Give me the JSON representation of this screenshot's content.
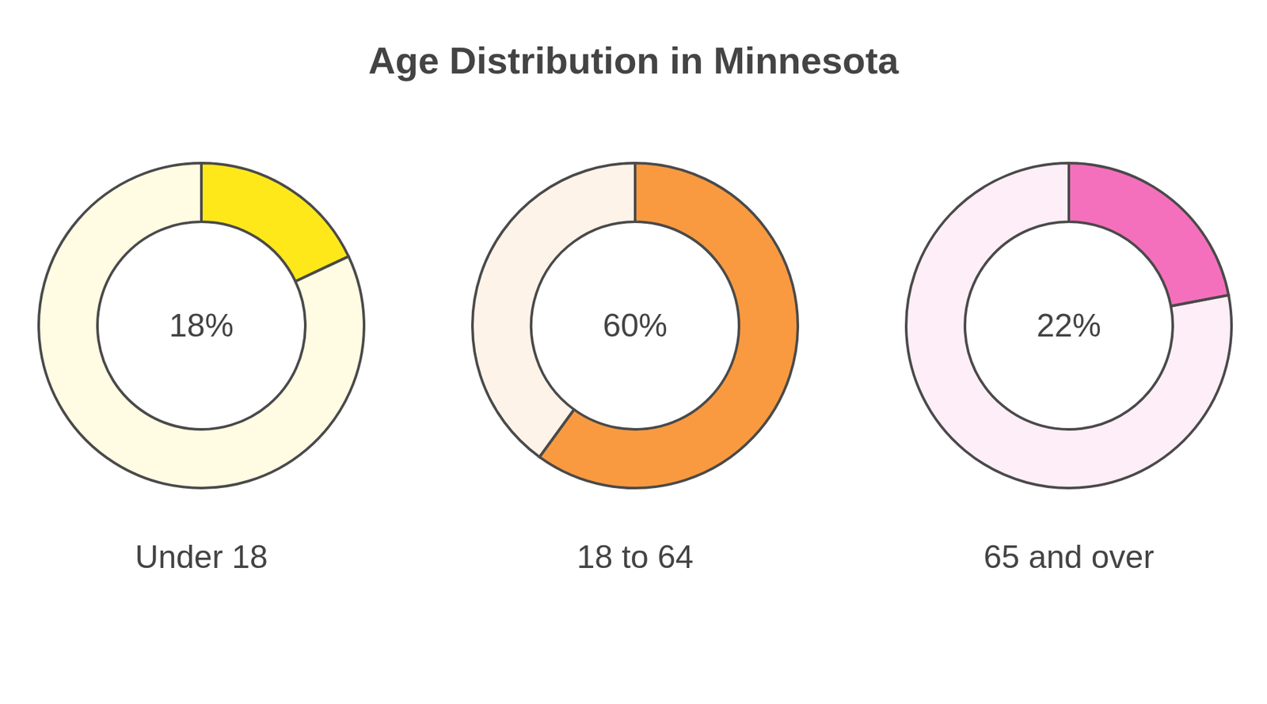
{
  "chart_data": {
    "type": "pie",
    "title": "Age Distribution in Minnesota",
    "categories": [
      "Under 18",
      "18 to 64",
      "65 and over"
    ],
    "values": [
      18,
      60,
      22
    ],
    "value_labels": [
      "18%",
      "60%",
      "22%"
    ],
    "colors": [
      "#FFE81A",
      "#F99A40",
      "#F570BC"
    ],
    "data_labels": true
  }
}
